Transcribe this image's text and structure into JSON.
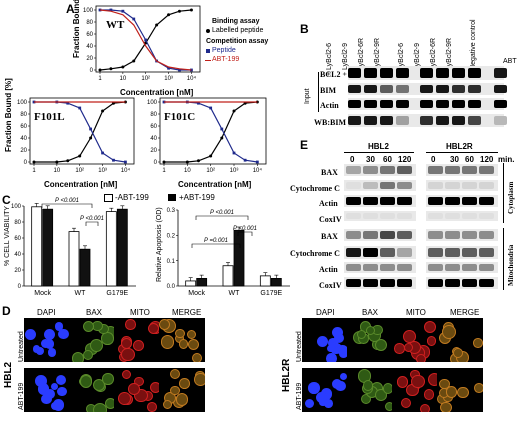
{
  "panel_letters": {
    "a": "A",
    "b": "B",
    "c": "C",
    "d": "D",
    "e": "E"
  },
  "panelA": {
    "ylabel": "Fraction Bound [%]",
    "xlabel": "Concentration [nM]",
    "legend": {
      "binding_title": "Binding assay",
      "binding_item": "Labelled peptide",
      "competition_title": "Competition assay",
      "peptide": "Peptide",
      "abt": "ABT-199"
    },
    "plots": [
      {
        "name": "WT",
        "yticks": [
          "100",
          "80",
          "60",
          "40",
          "20",
          "0"
        ],
        "xticks": [
          "1",
          "10",
          "10²",
          "10³",
          "10⁴"
        ]
      },
      {
        "name": "F101L",
        "yticks": [
          "100",
          "80",
          "60",
          "40",
          "20",
          "0"
        ],
        "xticks": [
          "1",
          "10",
          "10²",
          "10³",
          "10⁴"
        ]
      },
      {
        "name": "F101C",
        "yticks": [
          "100",
          "80",
          "60",
          "40",
          "20",
          "0"
        ],
        "xticks": [
          "1",
          "10",
          "10²",
          "10³",
          "10⁴"
        ]
      }
    ],
    "colors": {
      "binding": "#000000",
      "peptide": "#1f2a8c",
      "abt": "#c0201a"
    }
  },
  "panelB": {
    "lanes": [
      "+ LyBcl2-6",
      "+ LyBcl2-9",
      "+ LyBcl2-6R",
      "+ LyBcl2-9R",
      "+ LyBcl2-6",
      "+ LyBcl2-9",
      "+ LyBcl2-6R",
      "+ LyBcl2-9R",
      "+ Negative control"
    ],
    "abt_label": "ABT",
    "input_label": "Input",
    "rows": [
      "BCL2",
      "BIM",
      "Actin",
      "WB:BIM"
    ]
  },
  "panelC": {
    "legend_minus": "-ABT-199",
    "legend_plus": "+ABT-199",
    "left": {
      "ylabel": "% CELL VIABILITY",
      "yticks": [
        "100",
        "80",
        "60",
        "40",
        "20",
        "0"
      ],
      "categories": [
        "Mock",
        "WT",
        "G179E"
      ],
      "pval1": "P <0.001",
      "pval2": "P <0.001"
    },
    "right": {
      "ylabel": "Relative Apoptosis (OD)",
      "yticks": [
        "0.3",
        "0.2",
        "0.1",
        "0.0"
      ],
      "categories": [
        "Mock",
        "WT",
        "G179E"
      ],
      "pval1": "P <0.001",
      "pval2": "P =0.001",
      "pval3": "P <0.001"
    }
  },
  "panelE": {
    "groups": [
      "HBL2",
      "HBL2R"
    ],
    "timepoints": [
      "0",
      "30",
      "60",
      "120",
      "0",
      "30",
      "60",
      "120"
    ],
    "unit": "min.",
    "cyto_rows": [
      "BAX",
      "Cytochrome C",
      "Actin",
      "CoxIV"
    ],
    "mito_rows": [
      "BAX",
      "Cytochrome C",
      "Actin",
      "CoxIV"
    ],
    "cyto_label": "Cytoplasm",
    "mito_label": "Mitochondria"
  },
  "panelD": {
    "columns": [
      "DAPI",
      "BAX",
      "MITO",
      "MERGE"
    ],
    "left_cell": "HBL2",
    "right_cell": "HBL2R",
    "rows": [
      "Untreated",
      "ABT-199"
    ]
  },
  "chart_data": [
    {
      "type": "line",
      "title": "WT",
      "xlabel": "Concentration [nM]",
      "ylabel": "Fraction Bound [%]",
      "ylim": [
        0,
        100
      ],
      "series": [
        {
          "name": "Labelled peptide",
          "x": [
            1,
            3,
            10,
            30,
            100,
            300,
            1000,
            3000,
            10000
          ],
          "y": [
            0,
            2,
            5,
            15,
            45,
            75,
            92,
            98,
            100
          ]
        },
        {
          "name": "Peptide",
          "x": [
            1,
            3,
            10,
            30,
            100,
            300,
            1000,
            3000,
            10000
          ],
          "y": [
            100,
            100,
            98,
            85,
            50,
            15,
            3,
            0,
            0
          ]
        },
        {
          "name": "ABT-199",
          "x": [
            1,
            3,
            10,
            30,
            100,
            300,
            1000,
            3000,
            10000
          ],
          "y": [
            100,
            98,
            92,
            75,
            40,
            15,
            5,
            2,
            0
          ]
        }
      ]
    },
    {
      "type": "line",
      "title": "F101L",
      "xlabel": "Concentration [nM]",
      "ylabel": "Fraction Bound [%]",
      "ylim": [
        0,
        100
      ],
      "series": [
        {
          "name": "Labelled peptide",
          "x": [
            1,
            10,
            30,
            100,
            300,
            1000,
            3000,
            10000
          ],
          "y": [
            0,
            0,
            2,
            10,
            40,
            85,
            98,
            100
          ]
        },
        {
          "name": "Peptide",
          "x": [
            1,
            10,
            30,
            100,
            300,
            1000,
            3000,
            10000
          ],
          "y": [
            100,
            100,
            98,
            90,
            55,
            15,
            3,
            0
          ]
        },
        {
          "name": "ABT-199",
          "x": [
            1,
            10,
            30,
            100,
            300,
            1000,
            3000,
            10000
          ],
          "y": [
            100,
            100,
            100,
            100,
            100,
            100,
            100,
            100
          ]
        }
      ]
    },
    {
      "type": "line",
      "title": "F101C",
      "xlabel": "Concentration [nM]",
      "ylabel": "Fraction Bound [%]",
      "ylim": [
        0,
        100
      ],
      "series": [
        {
          "name": "Labelled peptide",
          "x": [
            1,
            10,
            30,
            100,
            300,
            1000,
            3000,
            10000
          ],
          "y": [
            0,
            0,
            2,
            10,
            40,
            85,
            98,
            100
          ]
        },
        {
          "name": "Peptide",
          "x": [
            1,
            10,
            30,
            100,
            300,
            1000,
            3000,
            10000
          ],
          "y": [
            100,
            100,
            98,
            90,
            55,
            15,
            3,
            0
          ]
        },
        {
          "name": "ABT-199",
          "x": [
            1,
            10,
            30,
            100,
            300,
            1000,
            3000,
            10000
          ],
          "y": [
            100,
            100,
            100,
            100,
            100,
            100,
            100,
            100
          ]
        }
      ]
    },
    {
      "type": "bar",
      "ylabel": "% CELL VIABILITY",
      "categories": [
        "Mock",
        "WT",
        "G179E"
      ],
      "ylim": [
        0,
        100
      ],
      "series": [
        {
          "name": "-ABT-199",
          "values": [
            99,
            68,
            93
          ]
        },
        {
          "name": "+ABT-199",
          "values": [
            96,
            46,
            96
          ]
        }
      ]
    },
    {
      "type": "bar",
      "ylabel": "Relative Apoptosis (OD)",
      "categories": [
        "Mock",
        "WT",
        "G179E"
      ],
      "ylim": [
        0,
        0.3
      ],
      "series": [
        {
          "name": "-ABT-199",
          "values": [
            0.02,
            0.08,
            0.04
          ]
        },
        {
          "name": "+ABT-199",
          "values": [
            0.03,
            0.22,
            0.03
          ]
        }
      ]
    }
  ]
}
